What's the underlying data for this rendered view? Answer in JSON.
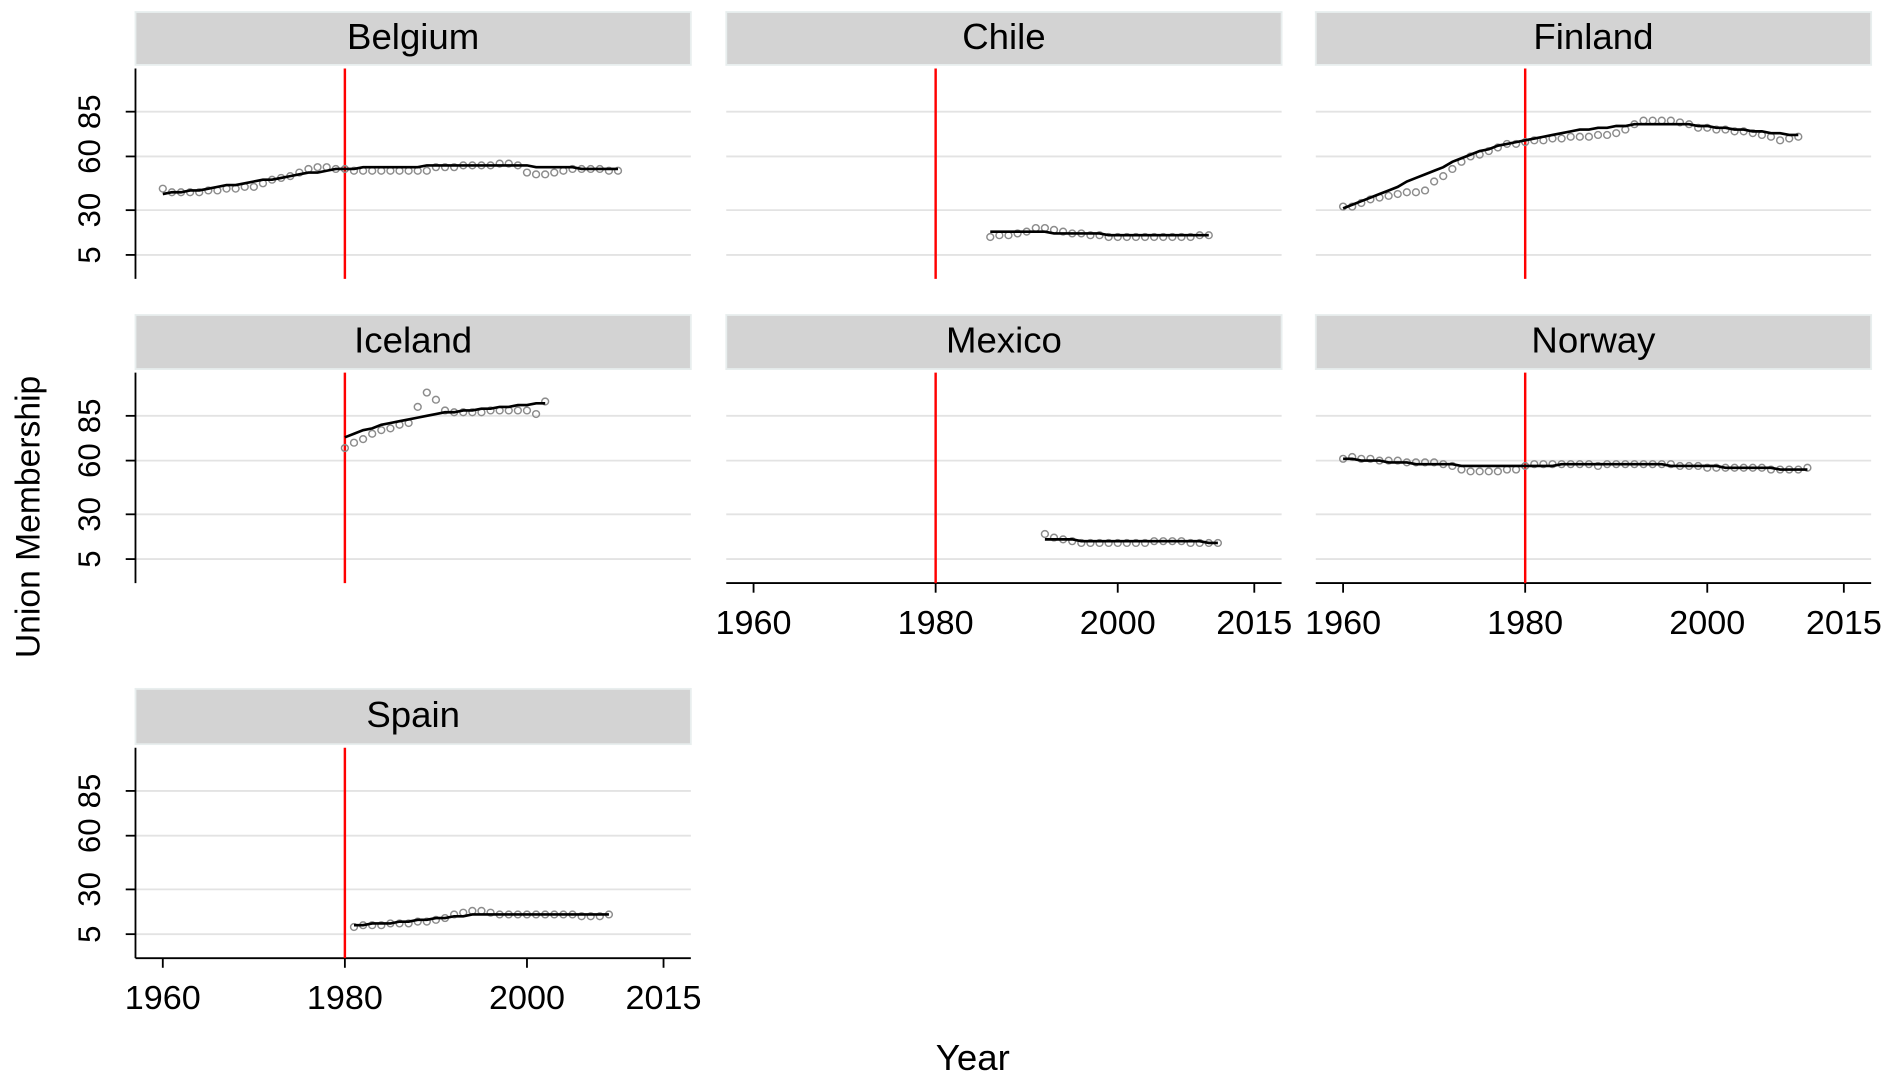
{
  "x_label": "Year",
  "y_label": "Union Membership",
  "chart_data": [
    {
      "type": "scatter",
      "title": "Belgium",
      "x": [
        1960,
        1961,
        1962,
        1963,
        1964,
        1965,
        1966,
        1967,
        1968,
        1969,
        1970,
        1971,
        1972,
        1973,
        1974,
        1975,
        1976,
        1977,
        1978,
        1979,
        1980,
        1981,
        1982,
        1983,
        1984,
        1985,
        1986,
        1987,
        1988,
        1989,
        1990,
        1991,
        1992,
        1993,
        1994,
        1995,
        1996,
        1997,
        1998,
        1999,
        2000,
        2001,
        2002,
        2003,
        2004,
        2005,
        2006,
        2007,
        2008,
        2009,
        2010
      ],
      "values": [
        42,
        40,
        40,
        40,
        40,
        41,
        41,
        42,
        42,
        43,
        43,
        45,
        47,
        48,
        49,
        51,
        53,
        54,
        54,
        53,
        53,
        52,
        52,
        52,
        52,
        52,
        52,
        52,
        52,
        52,
        54,
        54,
        54,
        55,
        55,
        55,
        55,
        56,
        56,
        55,
        51,
        50,
        50,
        51,
        52,
        53,
        53,
        53,
        53,
        52,
        52
      ],
      "fit": [
        39,
        40,
        40,
        41,
        41,
        42,
        43,
        44,
        44,
        45,
        46,
        47,
        47,
        48,
        49,
        50,
        51,
        51,
        52,
        53,
        53,
        53,
        54,
        54,
        54,
        54,
        54,
        54,
        54,
        55,
        55,
        55,
        55,
        55,
        55,
        55,
        55,
        55,
        55,
        55,
        55,
        54,
        54,
        54,
        54,
        54,
        53,
        53,
        53,
        53,
        53
      ],
      "vline": 1980,
      "xlim": [
        1957,
        2018
      ],
      "ylim": [
        -8.4,
        109.1
      ],
      "yticks": [
        5,
        30,
        60,
        85
      ],
      "ytick_labels": true,
      "point_color": "#8c8c8c",
      "line_color": "#000000",
      "vline_color": "#ff0000",
      "grid": true
    },
    {
      "type": "scatter",
      "title": "Chile",
      "x": [
        1986,
        1987,
        1988,
        1989,
        1990,
        1991,
        1992,
        1993,
        1994,
        1995,
        1996,
        1997,
        1998,
        1999,
        2000,
        2001,
        2002,
        2003,
        2004,
        2005,
        2006,
        2007,
        2008,
        2009,
        2010
      ],
      "values": [
        15,
        16,
        16,
        17,
        18,
        20,
        20,
        19,
        18,
        17,
        17,
        16,
        16,
        15,
        15,
        15,
        15,
        15,
        15,
        15,
        15,
        15,
        15,
        16,
        16
      ],
      "fit": [
        18,
        18,
        18,
        18,
        18,
        18,
        18,
        17,
        17,
        17,
        17,
        17,
        17,
        16,
        16,
        16,
        16,
        16,
        16,
        16,
        16,
        16,
        16,
        16,
        16
      ],
      "vline": 1980,
      "xlim": [
        1957,
        2018
      ],
      "ylim": [
        -8.4,
        109.1
      ],
      "yticks": [
        5,
        30,
        60,
        85
      ],
      "ytick_labels": false,
      "point_color": "#8c8c8c",
      "line_color": "#000000",
      "vline_color": "#ff0000",
      "grid": true
    },
    {
      "type": "scatter",
      "title": "Finland",
      "x": [
        1960,
        1961,
        1962,
        1963,
        1964,
        1965,
        1966,
        1967,
        1968,
        1969,
        1970,
        1971,
        1972,
        1973,
        1974,
        1975,
        1976,
        1977,
        1978,
        1979,
        1980,
        1981,
        1982,
        1983,
        1984,
        1985,
        1986,
        1987,
        1988,
        1989,
        1990,
        1991,
        1992,
        1993,
        1994,
        1995,
        1996,
        1997,
        1998,
        1999,
        2000,
        2001,
        2002,
        2003,
        2004,
        2005,
        2006,
        2007,
        2008,
        2009,
        2010
      ],
      "values": [
        32,
        32,
        34,
        36,
        37,
        38,
        39,
        40,
        40,
        41,
        46,
        49,
        53,
        57,
        60,
        61,
        63,
        65,
        67,
        67,
        68,
        69,
        69,
        70,
        70,
        71,
        71,
        71,
        72,
        72,
        73,
        75,
        78,
        80,
        80,
        80,
        80,
        79,
        78,
        76,
        76,
        75,
        75,
        74,
        74,
        73,
        72,
        71,
        69,
        70,
        71
      ],
      "fit": [
        31,
        33,
        35,
        37,
        39,
        41,
        43,
        46,
        48,
        50,
        52,
        54,
        57,
        59,
        61,
        63,
        64,
        66,
        67,
        68,
        69,
        70,
        71,
        72,
        73,
        74,
        75,
        75,
        76,
        76,
        77,
        77,
        78,
        78,
        78,
        78,
        78,
        78,
        78,
        77,
        77,
        76,
        76,
        75,
        75,
        74,
        74,
        73,
        73,
        72,
        72
      ],
      "vline": 1980,
      "xlim": [
        1957,
        2018
      ],
      "ylim": [
        -8.4,
        109.1
      ],
      "yticks": [
        5,
        30,
        60,
        85
      ],
      "ytick_labels": false,
      "point_color": "#8c8c8c",
      "line_color": "#000000",
      "vline_color": "#ff0000",
      "grid": true
    },
    {
      "type": "scatter",
      "title": "Iceland",
      "x": [
        1980,
        1981,
        1982,
        1983,
        1984,
        1985,
        1986,
        1987,
        1988,
        1989,
        1990,
        1991,
        1992,
        1993,
        1994,
        1995,
        1996,
        1997,
        1998,
        1999,
        2000,
        2001,
        2002
      ],
      "values": [
        67,
        70,
        72,
        75,
        77,
        78,
        80,
        81,
        90,
        98,
        94,
        88,
        87,
        87,
        87,
        87,
        88,
        88,
        88,
        88,
        88,
        86,
        93
      ],
      "fit": [
        73,
        75,
        77,
        78,
        80,
        81,
        82,
        83,
        84,
        85,
        86,
        87,
        87,
        88,
        88,
        89,
        89,
        90,
        90,
        91,
        91,
        92,
        92
      ],
      "vline": 1980,
      "xlim": [
        1957,
        2018
      ],
      "ylim": [
        -8.4,
        109.1
      ],
      "yticks": [
        5,
        30,
        60,
        85
      ],
      "ytick_labels": true,
      "point_color": "#8c8c8c",
      "line_color": "#000000",
      "vline_color": "#ff0000",
      "grid": true
    },
    {
      "type": "scatter",
      "title": "Mexico",
      "x": [
        1992,
        1993,
        1994,
        1995,
        1996,
        1997,
        1998,
        1999,
        2000,
        2001,
        2002,
        2003,
        2004,
        2005,
        2006,
        2007,
        2008,
        2009,
        2010,
        2011
      ],
      "values": [
        19,
        17,
        16,
        15,
        14,
        14,
        14,
        14,
        14,
        14,
        14,
        14,
        15,
        15,
        15,
        15,
        14,
        14,
        14,
        14
      ],
      "fit": [
        16,
        16,
        16,
        16,
        15,
        15,
        15,
        15,
        15,
        15,
        15,
        15,
        15,
        15,
        15,
        15,
        15,
        15,
        14,
        14
      ],
      "vline": 1980,
      "xlim": [
        1957,
        2018
      ],
      "ylim": [
        -8.4,
        109.1
      ],
      "xticks": [
        1960,
        1980,
        2000,
        2015
      ],
      "yticks": [
        5,
        30,
        60,
        85
      ],
      "ytick_labels": false,
      "point_color": "#8c8c8c",
      "line_color": "#000000",
      "vline_color": "#ff0000",
      "grid": true
    },
    {
      "type": "scatter",
      "title": "Norway",
      "x": [
        1960,
        1961,
        1962,
        1963,
        1964,
        1965,
        1966,
        1967,
        1968,
        1969,
        1970,
        1971,
        1972,
        1973,
        1974,
        1975,
        1976,
        1977,
        1978,
        1979,
        1980,
        1981,
        1982,
        1983,
        1984,
        1985,
        1986,
        1987,
        1988,
        1989,
        1990,
        1991,
        1992,
        1993,
        1994,
        1995,
        1996,
        1997,
        1998,
        1999,
        2000,
        2001,
        2002,
        2003,
        2004,
        2005,
        2006,
        2007,
        2008,
        2009,
        2010,
        2011
      ],
      "values": [
        61,
        62,
        61,
        61,
        60,
        60,
        60,
        59,
        59,
        59,
        59,
        58,
        57,
        55,
        54,
        54,
        54,
        54,
        55,
        55,
        57,
        58,
        58,
        58,
        58,
        58,
        58,
        58,
        57,
        58,
        58,
        58,
        58,
        58,
        58,
        58,
        58,
        57,
        57,
        57,
        56,
        56,
        56,
        56,
        56,
        56,
        56,
        55,
        55,
        55,
        55,
        56
      ],
      "fit": [
        61,
        61,
        60,
        60,
        60,
        59,
        59,
        59,
        58,
        58,
        58,
        58,
        58,
        57,
        57,
        57,
        57,
        57,
        57,
        57,
        57,
        57,
        57,
        57,
        58,
        58,
        58,
        58,
        58,
        58,
        58,
        58,
        58,
        58,
        58,
        58,
        57,
        57,
        57,
        57,
        57,
        57,
        56,
        56,
        56,
        56,
        56,
        56,
        55,
        55,
        55,
        55
      ],
      "vline": 1980,
      "xlim": [
        1957,
        2018
      ],
      "ylim": [
        -8.4,
        109.1
      ],
      "xticks": [
        1960,
        1980,
        2000,
        2015
      ],
      "yticks": [
        5,
        30,
        60,
        85
      ],
      "ytick_labels": false,
      "point_color": "#8c8c8c",
      "line_color": "#000000",
      "vline_color": "#ff0000",
      "grid": true
    },
    {
      "type": "scatter",
      "title": "Spain",
      "x": [
        1981,
        1982,
        1983,
        1984,
        1985,
        1986,
        1987,
        1988,
        1989,
        1990,
        1991,
        1992,
        1993,
        1994,
        1995,
        1996,
        1997,
        1998,
        1999,
        2000,
        2001,
        2002,
        2003,
        2004,
        2005,
        2006,
        2007,
        2008,
        2009
      ],
      "values": [
        9,
        10,
        10,
        10,
        11,
        11,
        11,
        12,
        12,
        13,
        14,
        16,
        17,
        18,
        18,
        17,
        16,
        16,
        16,
        16,
        16,
        16,
        16,
        16,
        16,
        15,
        15,
        15,
        16
      ],
      "fit": [
        10,
        10,
        11,
        11,
        11,
        12,
        12,
        13,
        13,
        14,
        14,
        15,
        15,
        16,
        16,
        16,
        16,
        16,
        16,
        16,
        16,
        16,
        16,
        16,
        16,
        16,
        16,
        16,
        16
      ],
      "vline": 1980,
      "xlim": [
        1957,
        2018
      ],
      "ylim": [
        -8.4,
        109.1
      ],
      "xticks": [
        1960,
        1980,
        2000,
        2015
      ],
      "yticks": [
        5,
        30,
        60,
        85
      ],
      "ytick_labels": true,
      "point_color": "#8c8c8c",
      "line_color": "#000000",
      "vline_color": "#ff0000",
      "grid": true
    }
  ]
}
